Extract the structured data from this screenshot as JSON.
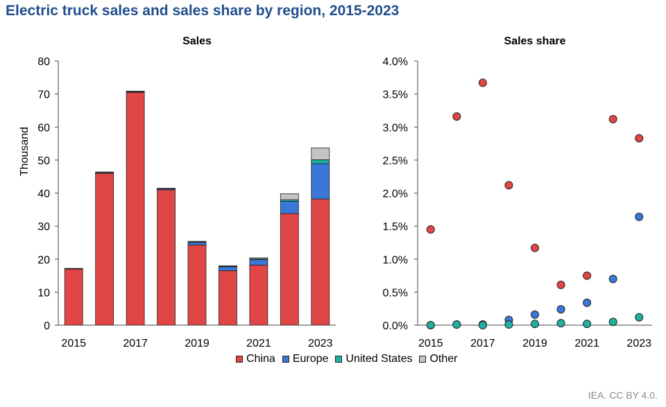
{
  "title": "Electric truck sales and sales share by region, 2015-2023",
  "source": "IEA. CC BY 4.0.",
  "legend": [
    {
      "label": "China",
      "color": "#e04646"
    },
    {
      "label": "Europe",
      "color": "#3a77d6"
    },
    {
      "label": "United States",
      "color": "#1fb0a0"
    },
    {
      "label": "Other",
      "color": "#c4c4c4"
    }
  ],
  "chart_data": [
    {
      "type": "bar",
      "stacked": true,
      "title": "Sales",
      "ylabel": "Thousand",
      "ylim": [
        0,
        80
      ],
      "yticks": [
        0,
        10,
        20,
        30,
        40,
        50,
        60,
        70,
        80
      ],
      "categories": [
        "2015",
        "2016",
        "2017",
        "2018",
        "2019",
        "2020",
        "2021",
        "2022",
        "2023"
      ],
      "tick_labels": [
        "2015",
        "",
        "2017",
        "",
        "2019",
        "",
        "2021",
        "",
        "2023"
      ],
      "series": [
        {
          "name": "China",
          "color": "#e04646",
          "values": [
            17,
            46,
            70.5,
            41,
            24.3,
            16.5,
            18.2,
            33.8,
            38.2
          ]
        },
        {
          "name": "Europe",
          "color": "#3a77d6",
          "values": [
            0.1,
            0.2,
            0.2,
            0.3,
            0.8,
            1.2,
            1.7,
            3.7,
            10.7
          ]
        },
        {
          "name": "United States",
          "color": "#1fb0a0",
          "values": [
            0,
            0,
            0,
            0,
            0.1,
            0.1,
            0.2,
            0.5,
            1.2
          ]
        },
        {
          "name": "Other",
          "color": "#c4c4c4",
          "values": [
            0.1,
            0.2,
            0.2,
            0.2,
            0.2,
            0.2,
            0.3,
            1.8,
            3.6
          ]
        }
      ],
      "grid": false
    },
    {
      "type": "scatter",
      "title": "Sales share",
      "ylim": [
        0,
        4.0
      ],
      "yticks": [
        "0.0%",
        "0.5%",
        "1.0%",
        "1.5%",
        "2.0%",
        "2.5%",
        "3.0%",
        "3.5%",
        "4.0%"
      ],
      "ytick_values": [
        0,
        0.5,
        1.0,
        1.5,
        2.0,
        2.5,
        3.0,
        3.5,
        4.0
      ],
      "categories": [
        "2015",
        "2016",
        "2017",
        "2018",
        "2019",
        "2020",
        "2021",
        "2022",
        "2023"
      ],
      "tick_labels": [
        "2015",
        "",
        "2017",
        "",
        "2019",
        "",
        "2021",
        "",
        "2023"
      ],
      "series": [
        {
          "name": "China",
          "color": "#e04646",
          "values": [
            1.45,
            3.16,
            3.67,
            2.12,
            1.17,
            0.61,
            0.75,
            3.12,
            2.83
          ]
        },
        {
          "name": "Europe",
          "color": "#3a77d6",
          "values": [
            0,
            0.01,
            0.01,
            0.08,
            0.16,
            0.24,
            0.34,
            0.7,
            1.64
          ]
        },
        {
          "name": "United States",
          "color": "#1fb0a0",
          "values": [
            0,
            0.01,
            0,
            0.01,
            0.02,
            0.03,
            0.02,
            0.05,
            0.12
          ]
        }
      ],
      "grid": false
    }
  ]
}
